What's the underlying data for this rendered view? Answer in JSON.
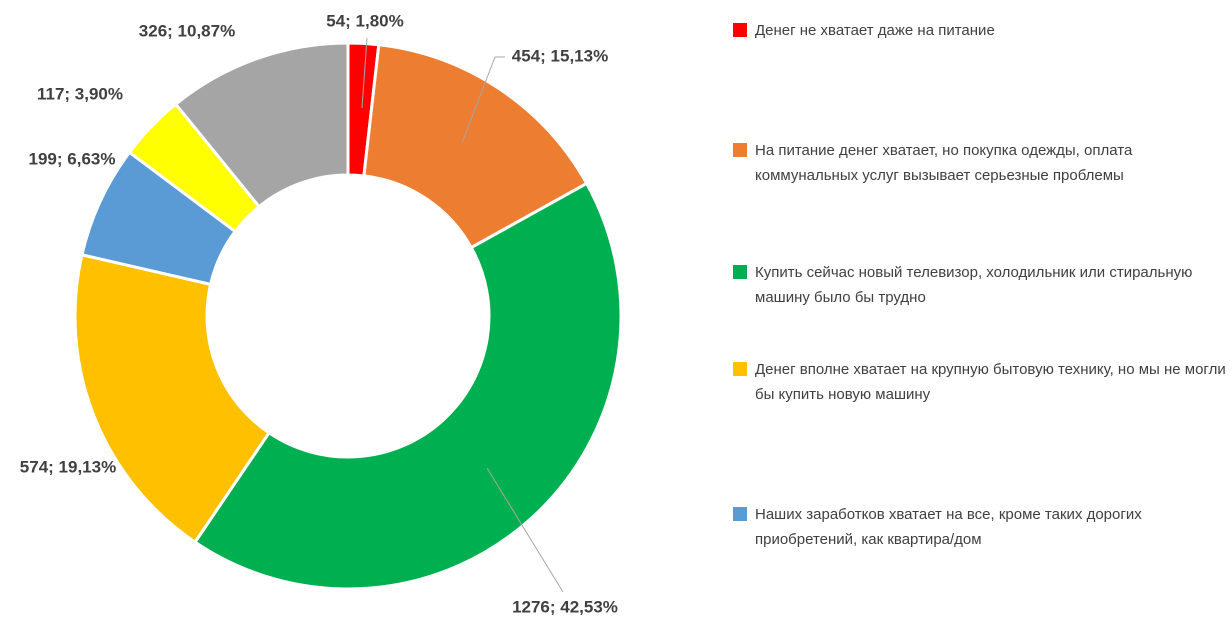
{
  "chart_data": {
    "type": "donut",
    "categories": [
      "Денег не хватает даже на питание",
      "На питание денег хватает, но покупка одежды, оплата коммунальных услуг вызывает серьезные проблемы",
      "Купить сейчас новый телевизор, холодильник или стиральную машину было бы трудно",
      "Денег вполне хватает на крупную бытовую технику, но мы не могли бы купить новую машину",
      "Наших заработков хватает на все, кроме таких дорогих приобретений, как квартира/дом",
      null,
      null
    ],
    "values": [
      54,
      454,
      1276,
      574,
      199,
      117,
      326
    ],
    "value_labels": [
      "54; 1,80%",
      "454; 15,13%",
      "1276; 42,53%",
      "574; 19,13%",
      "199; 6,63%",
      "117; 3,90%",
      "326; 10,87%"
    ],
    "colors": [
      "#ff0000",
      "#ed7d31",
      "#00b050",
      "#ffc000",
      "#5b9bd5",
      "#ffff00",
      "#a5a5a5"
    ],
    "legend": "right"
  }
}
